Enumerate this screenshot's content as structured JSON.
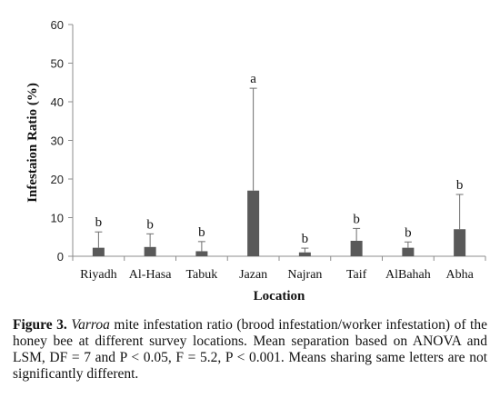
{
  "chart_data": {
    "type": "bar",
    "categories": [
      "Riyadh",
      "Al-Hasa",
      "Tabuk",
      "Jazan",
      "Najran",
      "Taif",
      "AlBahah",
      "Abha"
    ],
    "values": [
      2.2,
      2.4,
      1.3,
      17.0,
      1.0,
      4.0,
      2.2,
      7.0
    ],
    "error_upper": [
      6.3,
      5.8,
      3.8,
      43.5,
      2.1,
      7.2,
      3.7,
      16.0
    ],
    "significance_letters": [
      "b",
      "b",
      "b",
      "a",
      "b",
      "b",
      "b",
      "b"
    ],
    "ylabel": "Infestaion Ratio (%)",
    "xlabel": "Location",
    "ylim": [
      0,
      60
    ],
    "yticks": [
      0,
      10,
      20,
      30,
      40,
      50,
      60
    ],
    "bar_color": "#595959",
    "grid": false,
    "legend": "none"
  },
  "caption": {
    "label": "Figure 3.",
    "species": "Varroa",
    "text": " mite infestation ratio (brood infestation/worker infestation) of the honey bee at different survey locations. Mean separation based on ANOVA and LSM, DF = 7 and P < 0.05, F = 5.2, P < 0.001. Means sharing same letters are not significantly different."
  }
}
